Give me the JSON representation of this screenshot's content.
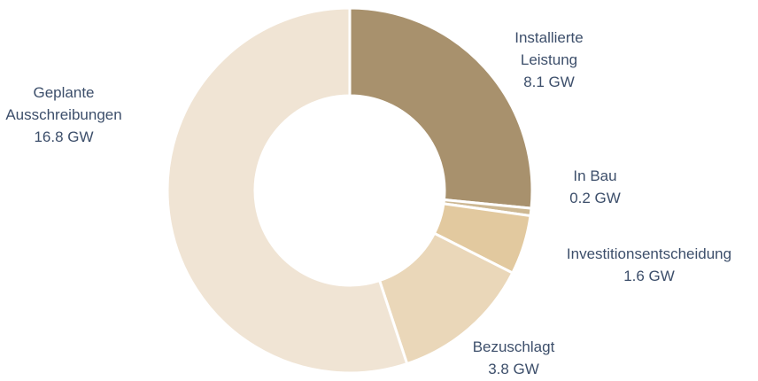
{
  "chart_data": {
    "type": "donut",
    "categories": [
      "Installierte Leistung",
      "In Bau",
      "Investitionsentscheidung",
      "Bezuschlagt",
      "Geplante Ausschreibungen"
    ],
    "values": [
      8.1,
      0.2,
      1.6,
      3.8,
      16.8
    ],
    "value_labels": [
      "8.1 GW",
      "0.2 GW",
      "1.6 GW",
      "3.8 GW",
      "16.8 GW"
    ],
    "colors": [
      "#a8916d",
      "#cdb893",
      "#e2c99f",
      "#ead7b9",
      "#f0e4d4"
    ]
  }
}
